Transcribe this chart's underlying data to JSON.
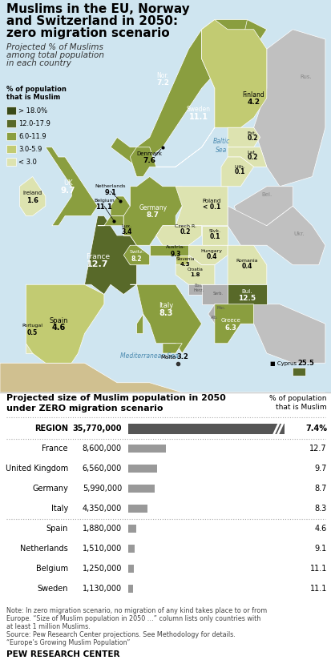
{
  "title_line1": "Muslims in the EU, Norway",
  "title_line2": "and Switzerland in 2050:",
  "title_line3": "zero migration scenario",
  "subtitle_line1": "Projected % of Muslims",
  "subtitle_line2": "among total population",
  "subtitle_line3": "in each country",
  "color_gt18": "#3a4a18",
  "color_12_18": "#586929",
  "color_6_12": "#8a9e3f",
  "color_3_6": "#c2cb72",
  "color_lt3": "#dde3b0",
  "color_noneu": "#c0c0c0",
  "color_sea": "#cfe5f0",
  "color_white_border": "#ffffff",
  "legend_items": [
    [
      "> 18.0%",
      "#3a4a18"
    ],
    [
      "12.0-17.9",
      "#586929"
    ],
    [
      "6.0-11.9",
      "#8a9e3f"
    ],
    [
      "3.0-5.9",
      "#c2cb72"
    ],
    [
      "< 3.0",
      "#dde3b0"
    ]
  ],
  "bar_rows": [
    {
      "country": "REGION",
      "population": "35,770,000",
      "value": 35770000,
      "pct": "7.4%",
      "bold": true
    },
    {
      "country": "France",
      "population": "8,600,000",
      "value": 8600000,
      "pct": "12.7",
      "bold": false
    },
    {
      "country": "United Kingdom",
      "population": "6,560,000",
      "value": 6560000,
      "pct": "9.7",
      "bold": false
    },
    {
      "country": "Germany",
      "population": "5,990,000",
      "value": 5990000,
      "pct": "8.7",
      "bold": false
    },
    {
      "country": "Italy",
      "population": "4,350,000",
      "value": 4350000,
      "pct": "8.3",
      "bold": false
    },
    {
      "country": "Spain",
      "population": "1,880,000",
      "value": 1880000,
      "pct": "4.6",
      "bold": false
    },
    {
      "country": "Netherlands",
      "population": "1,510,000",
      "value": 1510000,
      "pct": "9.1",
      "bold": false
    },
    {
      "country": "Belgium",
      "population": "1,250,000",
      "value": 1250000,
      "pct": "11.1",
      "bold": false
    },
    {
      "country": "Sweden",
      "population": "1,130,000",
      "value": 1130000,
      "pct": "11.1",
      "bold": false
    }
  ],
  "note_lines": [
    "Note: In zero migration scenario, no migration of any kind takes place to or from",
    "Europe. “Size of Muslim population in 2050 …” column lists only countries with",
    "at least 1 million Muslims.",
    "Source: Pew Research Center projections. See Methodology for details.",
    "“Europe’s Growing Muslim Population”"
  ],
  "footer": "PEW RESEARCH CENTER",
  "bg_color": "#ffffff",
  "bar_color_region": "#555555",
  "bar_color_country": "#999999"
}
